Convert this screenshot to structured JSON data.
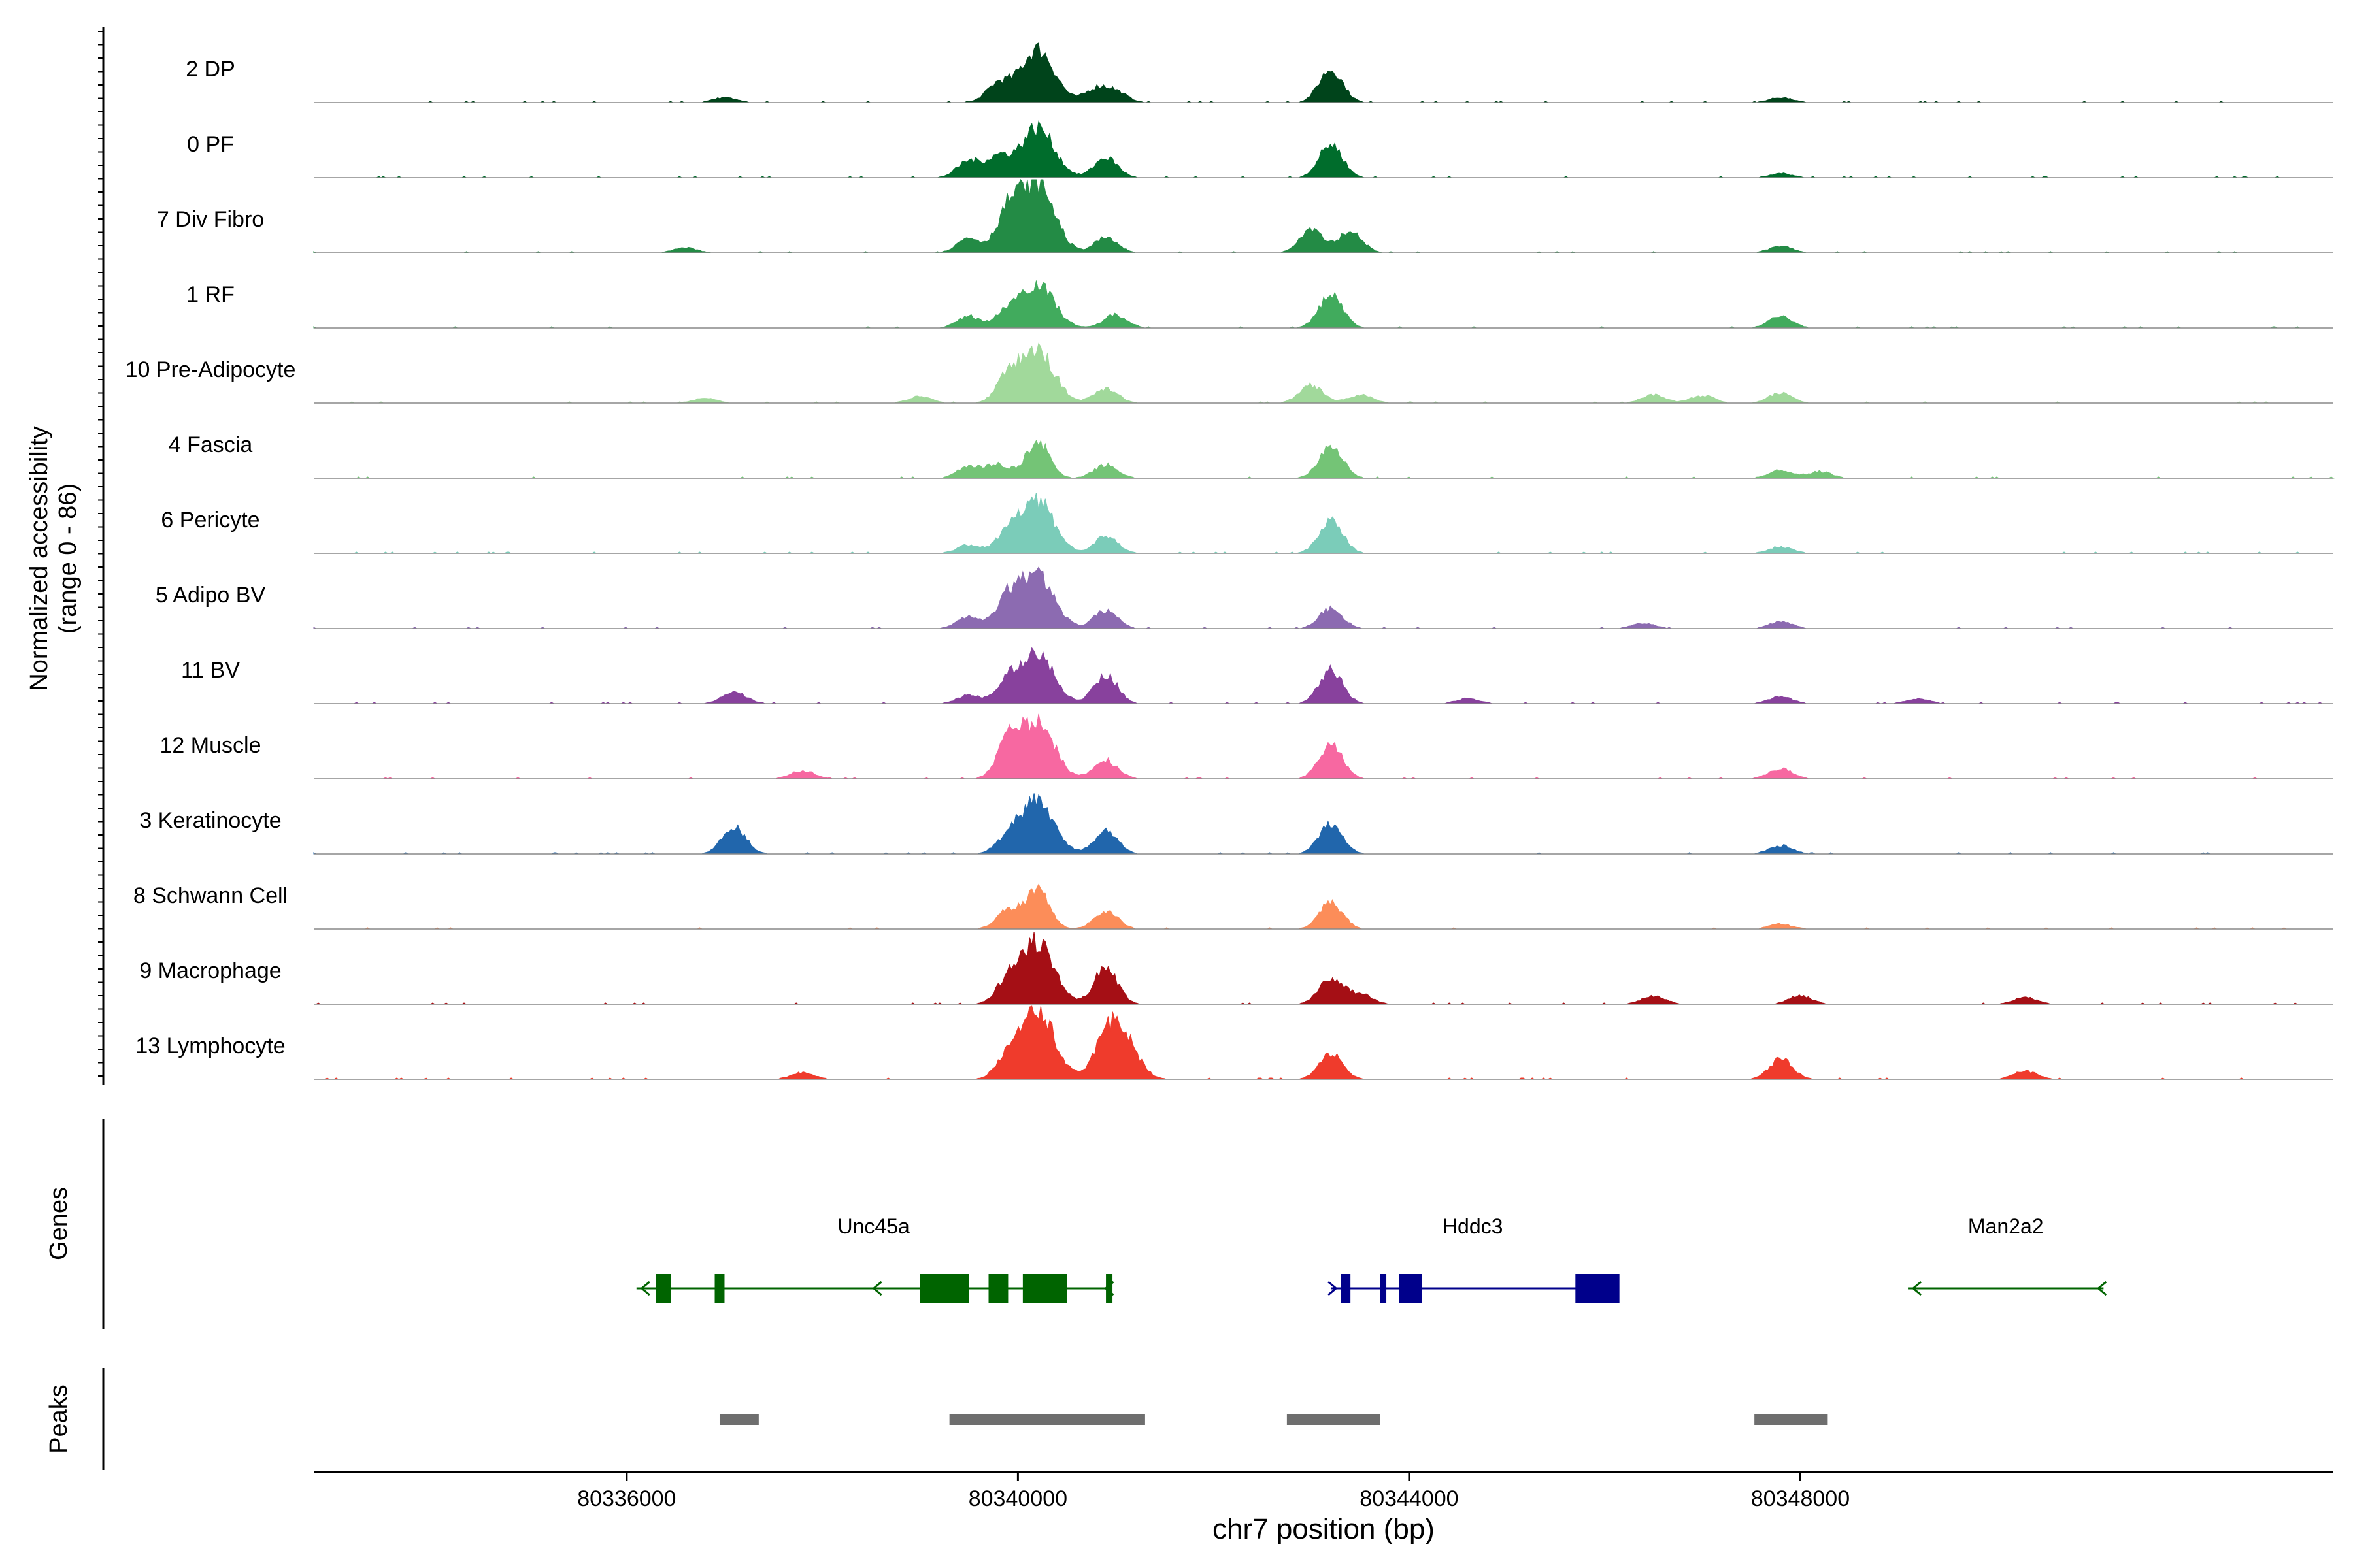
{
  "chart_data": {
    "type": "area",
    "title": "",
    "chromosome": "chr7",
    "xlabel": "chr7 position (bp)",
    "ylabel": "Normalized accessibility",
    "ylabel_range": "(range 0 - 86)",
    "xlim": [
      80332800,
      80353450
    ],
    "ylim": [
      0,
      86
    ],
    "x_ticks": [
      80336000,
      80340000,
      80344000,
      80348000
    ],
    "x_tick_labels": [
      "80336000",
      "80340000",
      "80344000",
      "80348000"
    ],
    "tracks": [
      {
        "name": "2 DP",
        "color": "#00441B",
        "peaks": [
          [
            80337000,
            6
          ],
          [
            80339800,
            22
          ],
          [
            80340200,
            64
          ],
          [
            80340800,
            16
          ],
          [
            80341000,
            12
          ],
          [
            80343200,
            40
          ],
          [
            80347800,
            6
          ]
        ]
      },
      {
        "name": "0 PF",
        "color": "#006D2C",
        "peaks": [
          [
            80339500,
            20
          ],
          [
            80339800,
            24
          ],
          [
            80340200,
            60
          ],
          [
            80340900,
            24
          ],
          [
            80343200,
            40
          ],
          [
            80347800,
            5
          ]
        ]
      },
      {
        "name": "7 Div Fibro",
        "color": "#238B45",
        "peaks": [
          [
            80336600,
            6
          ],
          [
            80339500,
            18
          ],
          [
            80339900,
            46
          ],
          [
            80340200,
            84
          ],
          [
            80340900,
            18
          ],
          [
            80343000,
            30
          ],
          [
            80343400,
            26
          ],
          [
            80347800,
            8
          ]
        ]
      },
      {
        "name": "1 RF",
        "color": "#41AB5D",
        "peaks": [
          [
            80339500,
            14
          ],
          [
            80339900,
            18
          ],
          [
            80340200,
            52
          ],
          [
            80341000,
            16
          ],
          [
            80343200,
            40
          ],
          [
            80347800,
            14
          ]
        ]
      },
      {
        "name": "10 Pre-Adipocyte",
        "color": "#A1D99B",
        "peaks": [
          [
            80336800,
            6
          ],
          [
            80339000,
            8
          ],
          [
            80339900,
            28
          ],
          [
            80340200,
            62
          ],
          [
            80340900,
            18
          ],
          [
            80343000,
            22
          ],
          [
            80343500,
            10
          ],
          [
            80346500,
            10
          ],
          [
            80347000,
            9
          ],
          [
            80347800,
            12
          ]
        ]
      },
      {
        "name": "4 Fascia",
        "color": "#74C476",
        "peaks": [
          [
            80339500,
            14
          ],
          [
            80339800,
            16
          ],
          [
            80340200,
            44
          ],
          [
            80340900,
            16
          ],
          [
            80343200,
            40
          ],
          [
            80347800,
            10
          ],
          [
            80348200,
            8
          ]
        ]
      },
      {
        "name": "6 Pericyte",
        "color": "#7BCCB9",
        "peaks": [
          [
            80339500,
            10
          ],
          [
            80339900,
            22
          ],
          [
            80340200,
            62
          ],
          [
            80340900,
            20
          ],
          [
            80343200,
            40
          ],
          [
            80347800,
            8
          ]
        ]
      },
      {
        "name": "5 Adipo BV",
        "color": "#8C6BB1",
        "peaks": [
          [
            80339500,
            14
          ],
          [
            80339900,
            34
          ],
          [
            80340200,
            64
          ],
          [
            80340900,
            22
          ],
          [
            80343200,
            24
          ],
          [
            80346400,
            6
          ],
          [
            80347800,
            8
          ]
        ]
      },
      {
        "name": "11 BV",
        "color": "#88419D",
        "peaks": [
          [
            80337100,
            14
          ],
          [
            80339500,
            10
          ],
          [
            80339900,
            24
          ],
          [
            80340200,
            58
          ],
          [
            80340900,
            34
          ],
          [
            80343200,
            40
          ],
          [
            80344600,
            6
          ],
          [
            80347800,
            8
          ],
          [
            80349200,
            6
          ]
        ]
      },
      {
        "name": "12 Muscle",
        "color": "#F768A1",
        "peaks": [
          [
            80337800,
            10
          ],
          [
            80339900,
            40
          ],
          [
            80340200,
            66
          ],
          [
            80340900,
            22
          ],
          [
            80343200,
            40
          ],
          [
            80347800,
            12
          ]
        ]
      },
      {
        "name": "3 Keratinocyte",
        "color": "#2166AC",
        "peaks": [
          [
            80337100,
            32
          ],
          [
            80339900,
            18
          ],
          [
            80340200,
            62
          ],
          [
            80340900,
            28
          ],
          [
            80343200,
            36
          ],
          [
            80347800,
            10
          ]
        ]
      },
      {
        "name": "8 Schwann Cell",
        "color": "#FC8D59",
        "peaks": [
          [
            80339900,
            22
          ],
          [
            80340200,
            46
          ],
          [
            80340900,
            22
          ],
          [
            80343200,
            32
          ],
          [
            80347800,
            6
          ]
        ]
      },
      {
        "name": "9 Macrophage",
        "color": "#A50F15",
        "peaks": [
          [
            80339900,
            26
          ],
          [
            80340200,
            74
          ],
          [
            80340900,
            44
          ],
          [
            80343200,
            32
          ],
          [
            80343500,
            12
          ],
          [
            80346500,
            10
          ],
          [
            80348000,
            10
          ],
          [
            80350300,
            8
          ]
        ]
      },
      {
        "name": "13 Lymphocyte",
        "color": "#EF3B2C",
        "peaks": [
          [
            80337800,
            8
          ],
          [
            80339900,
            24
          ],
          [
            80340200,
            84
          ],
          [
            80341000,
            72
          ],
          [
            80343200,
            30
          ],
          [
            80347800,
            24
          ],
          [
            80350300,
            10
          ]
        ]
      }
    ],
    "genes_track_label": "Genes",
    "genes": [
      {
        "name": "Unc45a",
        "color": "#006400",
        "strand": "-",
        "start": 80336100,
        "end": 80340950,
        "exons": [
          [
            80336300,
            80336450
          ],
          [
            80336900,
            80337000
          ],
          [
            80339000,
            80339500
          ],
          [
            80339700,
            80339900
          ],
          [
            80340050,
            80340500
          ],
          [
            80340900,
            80340950
          ]
        ]
      },
      {
        "name": "Hddc3",
        "color": "#00008B",
        "strand": "+",
        "start": 80343200,
        "end": 80346100,
        "exons": [
          [
            80343300,
            80343400
          ],
          [
            80343700,
            80343730
          ],
          [
            80343900,
            80344130
          ],
          [
            80345700,
            80346150
          ]
        ]
      },
      {
        "name": "Man2a2",
        "color": "#006400",
        "strand": "-",
        "start": 80349100,
        "end": 80351100,
        "exons": []
      }
    ],
    "peaks_track_label": "Peaks",
    "peak_regions": [
      [
        80336950,
        80337350
      ],
      [
        80339300,
        80341300
      ],
      [
        80342750,
        80343700
      ],
      [
        80347530,
        80348280
      ]
    ]
  }
}
